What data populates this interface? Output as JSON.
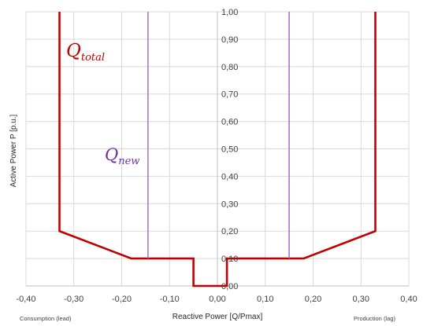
{
  "chart_data": {
    "type": "line",
    "xlabel": "Reactive Power [Q/Pmax]",
    "ylabel": "Active Power P [p.u.]",
    "xlim": [
      -0.4,
      0.4
    ],
    "ylim": [
      0.0,
      1.0
    ],
    "x_ticks": [
      "-0,40",
      "-0,30",
      "-0,20",
      "-0,10",
      "0,00",
      "0,10",
      "0,20",
      "0,30",
      "0,40"
    ],
    "y_ticks": [
      "0,00",
      "0,10",
      "0,20",
      "0,30",
      "0,40",
      "0,50",
      "0,60",
      "0,70",
      "0,80",
      "0,90",
      "1,00"
    ],
    "x_ticks_values": [
      -0.4,
      -0.3,
      -0.2,
      -0.1,
      0.0,
      0.1,
      0.2,
      0.3,
      0.4
    ],
    "y_ticks_values": [
      0.0,
      0.1,
      0.2,
      0.3,
      0.4,
      0.5,
      0.6,
      0.7,
      0.8,
      0.9,
      1.0
    ],
    "grid": true,
    "notes": {
      "left": "Consumption (lead)",
      "right": "Production (lag)"
    },
    "series": [
      {
        "name": "Q_total",
        "label_main": "Q",
        "label_sub": "total",
        "color": "#c00000",
        "segments": [
          [
            [
              -0.33,
              1.0
            ],
            [
              -0.33,
              0.2
            ],
            [
              -0.18,
              0.1
            ],
            [
              -0.05,
              0.1
            ],
            [
              -0.05,
              0.0
            ],
            [
              0.02,
              0.0
            ],
            [
              0.02,
              0.1
            ],
            [
              0.18,
              0.1
            ],
            [
              0.33,
              0.2
            ],
            [
              0.33,
              1.0
            ]
          ]
        ]
      },
      {
        "name": "Q_new",
        "label_main": "Q",
        "label_sub": "new",
        "color": "#9966cc",
        "segments": [
          [
            [
              -0.145,
              1.0
            ],
            [
              -0.145,
              0.1
            ]
          ],
          [
            [
              0.15,
              1.0
            ],
            [
              0.15,
              0.1
            ]
          ]
        ]
      }
    ]
  }
}
